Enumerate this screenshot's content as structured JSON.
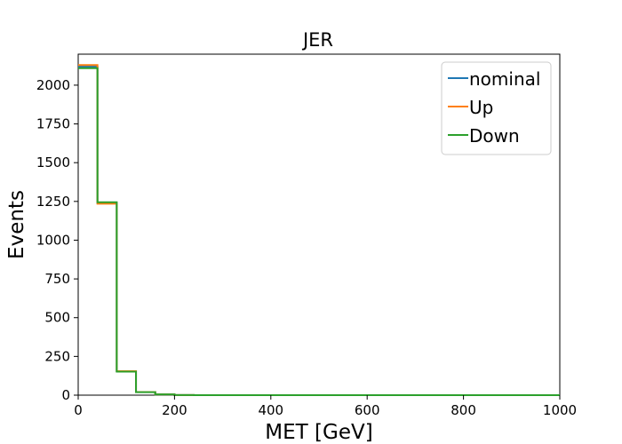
{
  "chart_data": {
    "type": "line",
    "style": "step-histogram",
    "title": "JER",
    "xlabel": "MET [GeV]",
    "ylabel": "Events",
    "xlim": [
      0,
      1000
    ],
    "ylim": [
      0,
      2200
    ],
    "xticks": [
      0,
      200,
      400,
      600,
      800,
      1000
    ],
    "yticks": [
      0,
      250,
      500,
      750,
      1000,
      1250,
      1500,
      1750,
      2000
    ],
    "grid": false,
    "legend_position": "top-right",
    "bin_edges": [
      0,
      40,
      80,
      120,
      160,
      200,
      240,
      280,
      320,
      360,
      400,
      440,
      480,
      520,
      560,
      600,
      640,
      680,
      720,
      760,
      800,
      840,
      880,
      920,
      960,
      1000
    ],
    "series": [
      {
        "name": "nominal",
        "color": "#1f77b4",
        "values": [
          2120,
          1240,
          155,
          20,
          5,
          1,
          0,
          0,
          0,
          0,
          0,
          0,
          0,
          0,
          0,
          0,
          0,
          0,
          0,
          0,
          0,
          0,
          0,
          0,
          0
        ]
      },
      {
        "name": "Up",
        "color": "#ff7f0e",
        "values": [
          2130,
          1235,
          155,
          20,
          5,
          1,
          0,
          0,
          0,
          0,
          0,
          0,
          0,
          0,
          0,
          0,
          0,
          0,
          0,
          0,
          0,
          0,
          0,
          0,
          0
        ]
      },
      {
        "name": "Down",
        "color": "#2ca02c",
        "values": [
          2110,
          1245,
          152,
          19,
          5,
          1,
          0,
          0,
          0,
          0,
          0,
          0,
          0,
          0,
          0,
          0,
          0,
          0,
          0,
          0,
          0,
          0,
          0,
          0,
          0
        ]
      }
    ]
  }
}
